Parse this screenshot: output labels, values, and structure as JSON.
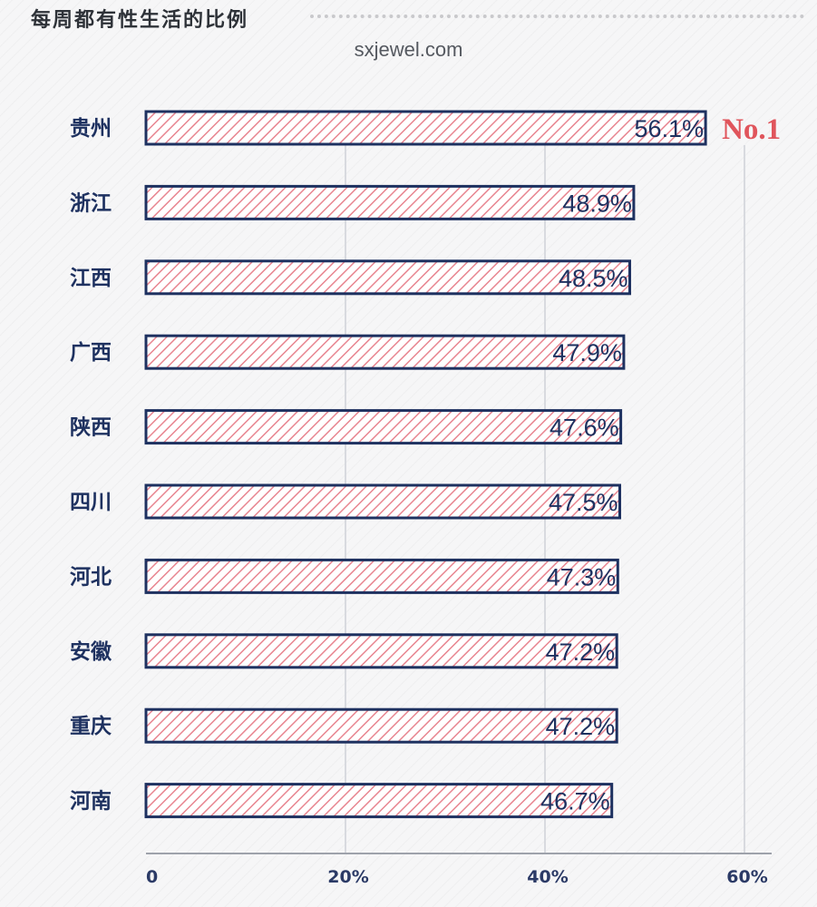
{
  "watermark": "sxjewel.com",
  "chart_data": {
    "type": "bar",
    "orientation": "horizontal",
    "title": "每周都有性生活的比例",
    "categories": [
      "贵州",
      "浙江",
      "江西",
      "广西",
      "陕西",
      "四川",
      "河北",
      "安徽",
      "重庆",
      "河南"
    ],
    "values": [
      56.1,
      48.9,
      48.5,
      47.9,
      47.6,
      47.5,
      47.3,
      47.2,
      47.2,
      46.7
    ],
    "value_labels": [
      "56.1%",
      "48.9%",
      "48.5%",
      "47.9%",
      "47.6%",
      "47.5%",
      "47.3%",
      "47.2%",
      "47.2%",
      "46.7%"
    ],
    "xlim": [
      0,
      60
    ],
    "xticks": [
      0,
      20,
      40,
      60
    ],
    "xtick_labels": [
      "0",
      "20%",
      "40%",
      "60%"
    ],
    "grid": true,
    "annotation": "No.1",
    "colors": {
      "bar_stroke": "#1e3160",
      "bar_hatch": "#e88590",
      "bar_fill": "#ffffff",
      "label": "#1e3160",
      "annotation": "#e0555c",
      "grid": "#d8dadf"
    }
  }
}
